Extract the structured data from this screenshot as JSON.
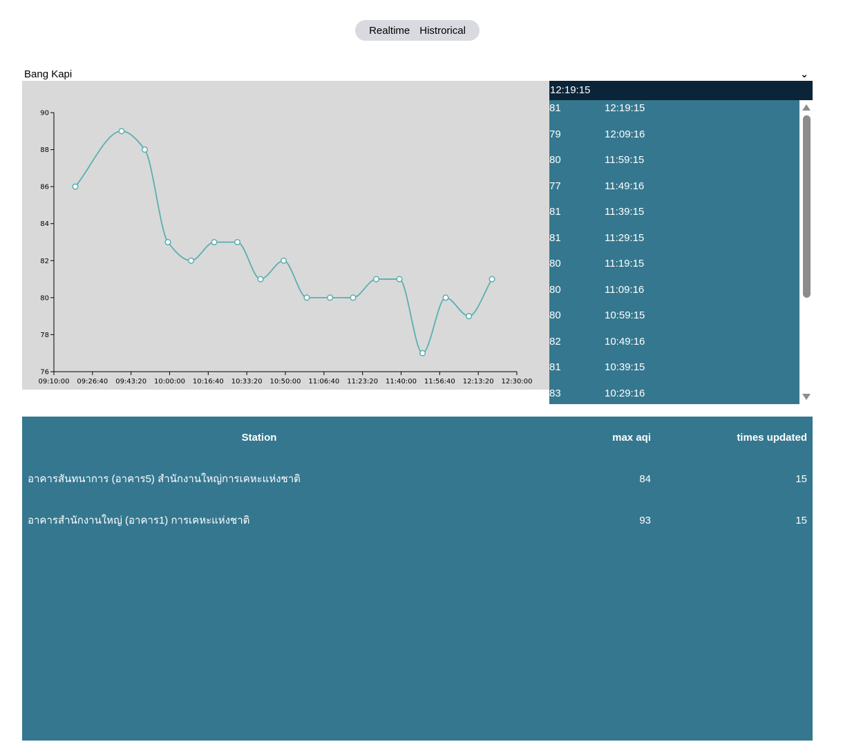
{
  "mode_toggle": {
    "realtime_label": "Realtime",
    "historical_label": "Histrorical"
  },
  "station_select": {
    "value": "Bang Kapi"
  },
  "readings": {
    "header_time": "12:19:15",
    "rows": [
      {
        "aqi": "81",
        "time": "12:19:15"
      },
      {
        "aqi": "79",
        "time": "12:09:16"
      },
      {
        "aqi": "80",
        "time": "11:59:15"
      },
      {
        "aqi": "77",
        "time": "11:49:16"
      },
      {
        "aqi": "81",
        "time": "11:39:15"
      },
      {
        "aqi": "81",
        "time": "11:29:15"
      },
      {
        "aqi": "80",
        "time": "11:19:15"
      },
      {
        "aqi": "80",
        "time": "11:09:16"
      },
      {
        "aqi": "80",
        "time": "10:59:15"
      },
      {
        "aqi": "82",
        "time": "10:49:16"
      },
      {
        "aqi": "81",
        "time": "10:39:15"
      },
      {
        "aqi": "83",
        "time": "10:29:16"
      }
    ]
  },
  "table": {
    "headers": {
      "station": "Station",
      "max_aqi": "max aqi",
      "times_updated": "times updated"
    },
    "rows": [
      {
        "station": "อาคารสันทนาการ (อาคาร5) สำนักงานใหญ่การเคหะแห่งชาติ",
        "max_aqi": "84",
        "times_updated": "15"
      },
      {
        "station": "อาคารสำนักงานใหญ่ (อาคาร1) การเคหะแห่งชาติ",
        "max_aqi": "93",
        "times_updated": "15"
      }
    ]
  },
  "chart_data": {
    "type": "line",
    "x": [
      "09:19:15",
      "09:39:15",
      "09:49:16",
      "09:59:15",
      "10:09:16",
      "10:19:15",
      "10:29:16",
      "10:39:15",
      "10:49:16",
      "10:59:15",
      "11:09:16",
      "11:19:15",
      "11:29:15",
      "11:39:15",
      "11:49:16",
      "11:59:15",
      "12:09:16",
      "12:19:15"
    ],
    "values": [
      86,
      89,
      88,
      83,
      82,
      83,
      83,
      81,
      82,
      80,
      80,
      80,
      81,
      81,
      77,
      80,
      79,
      81
    ],
    "xlim": [
      "09:10:00",
      "12:30:00"
    ],
    "ylim": [
      76,
      90
    ],
    "xticks": [
      "09:10:00",
      "09:26:40",
      "09:43:20",
      "10:00:00",
      "10:16:40",
      "10:33:20",
      "10:50:00",
      "11:06:40",
      "11:23:20",
      "11:40:00",
      "11:56:40",
      "12:13:20",
      "12:30:00"
    ],
    "yticks": [
      "76",
      "78",
      "80",
      "82",
      "84",
      "86",
      "88",
      "90"
    ],
    "line_color": "#5aaeaf",
    "background_color": "#d9d9d9",
    "grid": false
  }
}
